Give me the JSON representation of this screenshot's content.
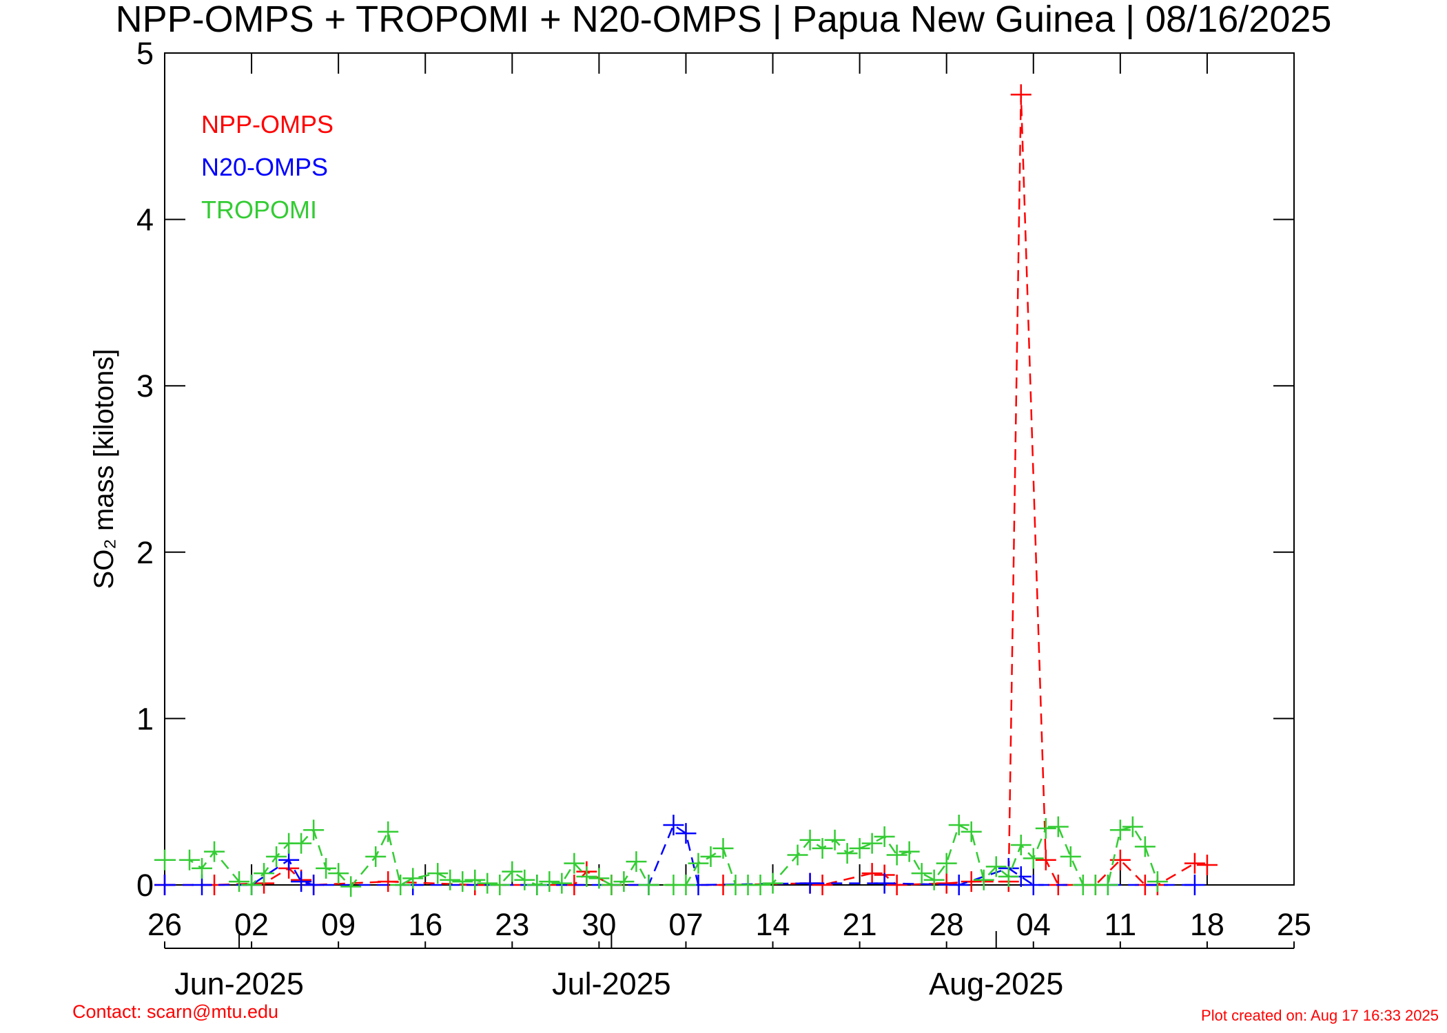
{
  "chart_data": {
    "type": "line",
    "title": "NPP-OMPS + TROPOMI + N20-OMPS | Papua New Guinea | 08/16/2025",
    "y_label": "SO₂ mass [kilotons]",
    "contact": "Contact: scarn@mtu.edu",
    "created": "Plot created on: Aug 17 16:33 2025",
    "xlim": [
      "2025-05-26",
      "2025-08-25"
    ],
    "xticks": [
      {
        "value": "2025-05-26",
        "label": "26"
      },
      {
        "value": "2025-06-02",
        "label": "02"
      },
      {
        "value": "2025-06-09",
        "label": "09"
      },
      {
        "value": "2025-06-16",
        "label": "16"
      },
      {
        "value": "2025-06-23",
        "label": "23"
      },
      {
        "value": "2025-06-30",
        "label": "30"
      },
      {
        "value": "2025-07-07",
        "label": "07"
      },
      {
        "value": "2025-07-14",
        "label": "14"
      },
      {
        "value": "2025-07-21",
        "label": "21"
      },
      {
        "value": "2025-07-28",
        "label": "28"
      },
      {
        "value": "2025-08-04",
        "label": "04"
      },
      {
        "value": "2025-08-11",
        "label": "11"
      },
      {
        "value": "2025-08-18",
        "label": "18"
      },
      {
        "value": "2025-08-25",
        "label": "25"
      }
    ],
    "month_ticks": [
      {
        "value": "2025-06-01",
        "label": "Jun-2025"
      },
      {
        "value": "2025-07-01",
        "label": "Jul-2025"
      },
      {
        "value": "2025-08-01",
        "label": "Aug-2025"
      }
    ],
    "ylim": [
      0,
      5
    ],
    "yticks": [
      0,
      1,
      2,
      3,
      4,
      5
    ],
    "series": [
      {
        "name": "NPP-OMPS",
        "color": "#ff0000",
        "x": [
          "2025-05-26",
          "2025-05-30",
          "2025-06-03",
          "2025-06-05",
          "2025-06-06",
          "2025-06-07",
          "2025-06-13",
          "2025-06-20",
          "2025-06-28",
          "2025-06-29",
          "2025-07-01",
          "2025-07-10",
          "2025-07-17",
          "2025-07-18",
          "2025-07-22",
          "2025-07-23",
          "2025-07-24",
          "2025-07-28",
          "2025-07-30",
          "2025-08-02",
          "2025-08-03",
          "2025-08-05",
          "2025-08-06",
          "2025-08-09",
          "2025-08-11",
          "2025-08-13",
          "2025-08-14",
          "2025-08-17",
          "2025-08-18"
        ],
        "values": [
          0,
          0,
          0.01,
          0.1,
          0.03,
          0,
          0.02,
          0,
          0,
          0.08,
          0,
          0,
          0.01,
          0,
          0.07,
          0.06,
          0,
          0.01,
          0.02,
          0.02,
          4.75,
          0.15,
          0,
          0,
          0.15,
          0,
          0,
          0.13,
          0.12
        ]
      },
      {
        "name": "N20-OMPS",
        "color": "#0000ff",
        "x": [
          "2025-05-26",
          "2025-05-29",
          "2025-06-02",
          "2025-06-05",
          "2025-06-06",
          "2025-06-07",
          "2025-06-15",
          "2025-06-25",
          "2025-07-04",
          "2025-07-06",
          "2025-07-07",
          "2025-07-08",
          "2025-07-17",
          "2025-07-23",
          "2025-07-29",
          "2025-08-02",
          "2025-08-03",
          "2025-08-04",
          "2025-08-10",
          "2025-08-17"
        ],
        "values": [
          0,
          0,
          0,
          0.15,
          0.02,
          0,
          0,
          0,
          0,
          0.36,
          0.31,
          0,
          0.01,
          0.01,
          0,
          0.1,
          0.05,
          0,
          0,
          0
        ]
      },
      {
        "name": "TROPOMI",
        "color": "#33cc33",
        "x": [
          "2025-05-26",
          "2025-05-28",
          "2025-05-29",
          "2025-05-30",
          "2025-06-01",
          "2025-06-02",
          "2025-06-03",
          "2025-06-04",
          "2025-06-05",
          "2025-06-06",
          "2025-06-07",
          "2025-06-08",
          "2025-06-09",
          "2025-06-10",
          "2025-06-12",
          "2025-06-13",
          "2025-06-14",
          "2025-06-15",
          "2025-06-17",
          "2025-06-18",
          "2025-06-19",
          "2025-06-20",
          "2025-06-21",
          "2025-06-22",
          "2025-06-23",
          "2025-06-24",
          "2025-06-25",
          "2025-06-26",
          "2025-06-27",
          "2025-06-28",
          "2025-06-29",
          "2025-06-30",
          "2025-07-01",
          "2025-07-02",
          "2025-07-03",
          "2025-07-04",
          "2025-07-06",
          "2025-07-07",
          "2025-07-08",
          "2025-07-09",
          "2025-07-10",
          "2025-07-11",
          "2025-07-12",
          "2025-07-13",
          "2025-07-14",
          "2025-07-16",
          "2025-07-17",
          "2025-07-18",
          "2025-07-19",
          "2025-07-20",
          "2025-07-21",
          "2025-07-22",
          "2025-07-23",
          "2025-07-24",
          "2025-07-25",
          "2025-07-26",
          "2025-07-27",
          "2025-07-28",
          "2025-07-29",
          "2025-07-30",
          "2025-07-31",
          "2025-08-01",
          "2025-08-02",
          "2025-08-03",
          "2025-08-04",
          "2025-08-05",
          "2025-08-06",
          "2025-08-07",
          "2025-08-08",
          "2025-08-09",
          "2025-08-10",
          "2025-08-11",
          "2025-08-12",
          "2025-08-13",
          "2025-08-14"
        ],
        "values": [
          0.15,
          0.15,
          0.1,
          0.2,
          0.02,
          0,
          0.07,
          0.17,
          0.25,
          0.25,
          0.33,
          0.1,
          0.07,
          -0.01,
          0.17,
          0.32,
          0,
          0.04,
          0.07,
          0.03,
          0.02,
          0.03,
          0.01,
          0,
          0.08,
          0.03,
          0,
          0.02,
          0.01,
          0.13,
          0.05,
          0.04,
          0,
          0.02,
          0.14,
          0,
          0,
          0,
          0.13,
          0.17,
          0.22,
          0,
          0,
          0,
          0.01,
          0.18,
          0.27,
          0.22,
          0.27,
          0.19,
          0.22,
          0.25,
          0.29,
          0.18,
          0.2,
          0.07,
          0.03,
          0.13,
          0.36,
          0.32,
          0.03,
          0.11,
          0.05,
          0.24,
          0.16,
          0.34,
          0.35,
          0.17,
          0,
          0,
          0,
          0.33,
          0.35,
          0.23,
          0.02
        ]
      }
    ]
  }
}
